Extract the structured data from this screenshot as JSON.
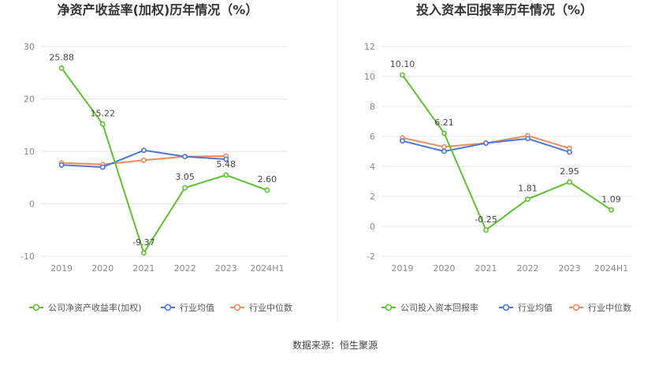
{
  "source_label": "数据来源：恒生聚源",
  "chart_data": [
    {
      "type": "line",
      "title": "净资产收益率(加权)历年情况（%）",
      "categories": [
        "2019",
        "2020",
        "2021",
        "2022",
        "2023",
        "2024H1"
      ],
      "ylim": [
        -10,
        30
      ],
      "yticks": [
        -10,
        0,
        10,
        20,
        30
      ],
      "ytick_labels": [
        "-10",
        "0",
        "10",
        "20",
        "30"
      ],
      "grid": true,
      "legend_position": "bottom-left",
      "series": [
        {
          "name": "公司净资产收益率(加权)",
          "color": "#5cc22e",
          "values": [
            25.88,
            15.22,
            -9.37,
            3.05,
            5.48,
            2.6
          ],
          "labels": [
            "25.88",
            "15.22",
            "-9.37",
            "3.05",
            "5.48",
            "2.60"
          ]
        },
        {
          "name": "行业均值",
          "color": "#4a78d8",
          "values": [
            7.4,
            7.0,
            10.2,
            9.0,
            8.5,
            null
          ]
        },
        {
          "name": "行业中位数",
          "color": "#f08a5d",
          "values": [
            7.8,
            7.5,
            8.3,
            9.0,
            9.1,
            null
          ]
        }
      ]
    },
    {
      "type": "line",
      "title": "投入资本回报率历年情况（%）",
      "categories": [
        "2019",
        "2020",
        "2021",
        "2022",
        "2023",
        "2024H1"
      ],
      "ylim": [
        -2,
        12
      ],
      "yticks": [
        -2,
        0,
        2,
        4,
        6,
        8,
        10,
        12
      ],
      "ytick_labels": [
        "-2",
        "0",
        "2",
        "4",
        "6",
        "8",
        "10",
        "12"
      ],
      "grid": true,
      "legend_position": "bottom-left",
      "series": [
        {
          "name": "公司投入资本回报率",
          "color": "#5cc22e",
          "values": [
            10.1,
            6.21,
            -0.25,
            1.81,
            2.95,
            1.09
          ],
          "labels": [
            "10.10",
            "6.21",
            "-0.25",
            "1.81",
            "2.95",
            "1.09"
          ]
        },
        {
          "name": "行业均值",
          "color": "#4a78d8",
          "values": [
            5.7,
            5.0,
            5.55,
            5.85,
            4.95,
            null
          ]
        },
        {
          "name": "行业中位数",
          "color": "#f08a5d",
          "values": [
            5.9,
            5.3,
            5.55,
            6.05,
            5.2,
            null
          ]
        }
      ]
    }
  ]
}
